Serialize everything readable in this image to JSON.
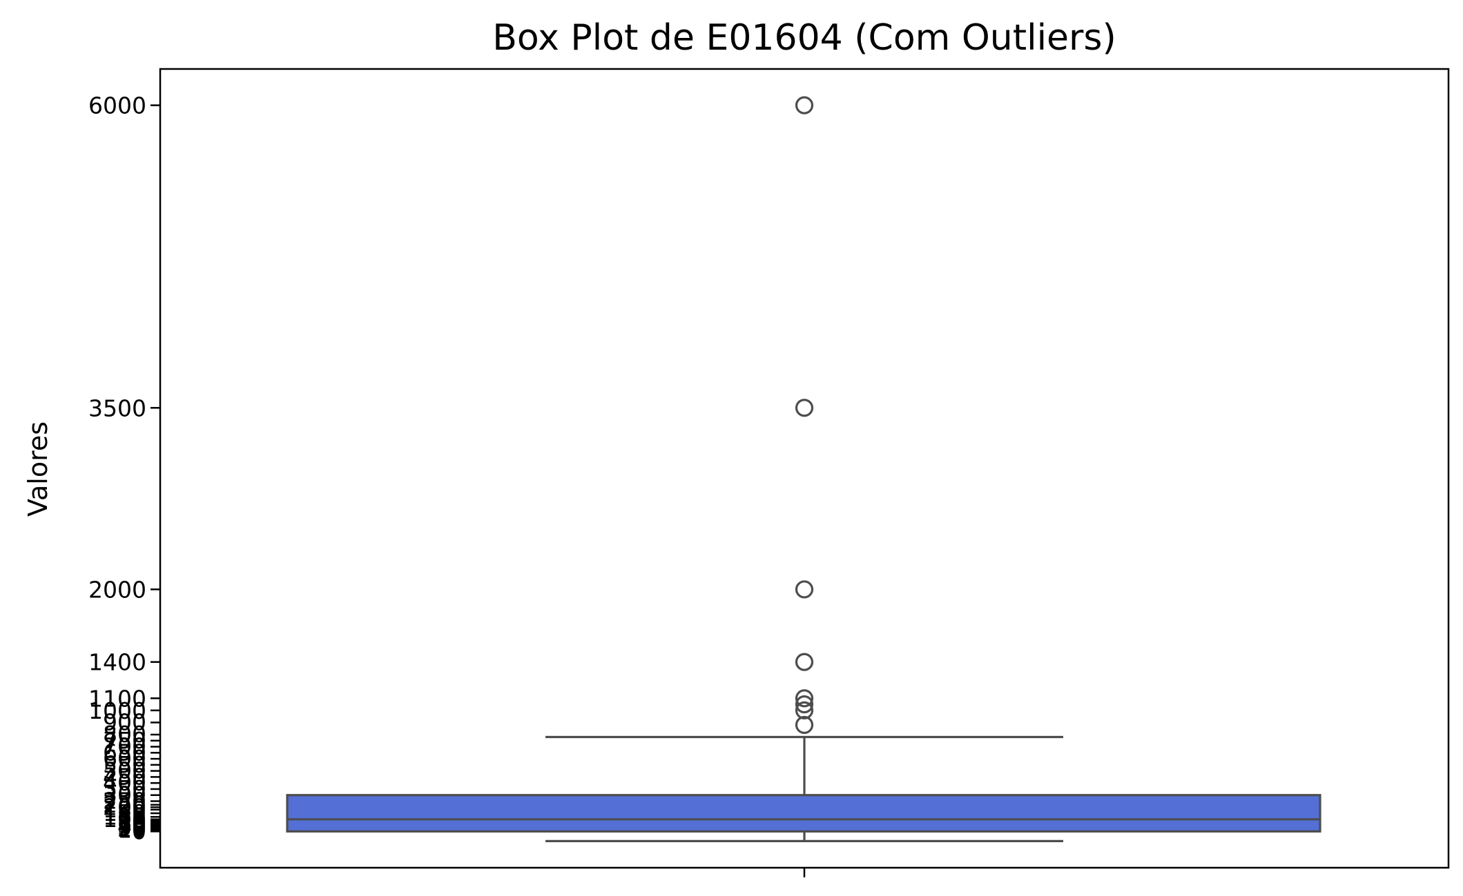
{
  "chart_data": {
    "type": "box",
    "title": "Box Plot de E01604 (Com Outliers)",
    "ylabel": "Valores",
    "xlabel": "",
    "ylim": [
      -300,
      6300
    ],
    "grid": false,
    "legend": "none",
    "box_color": "#5470D6",
    "line_color": "#4D4D4D",
    "box": {
      "whisker_low": 0,
      "q1": 0,
      "median": 100,
      "q3": 300,
      "whisker_high": 780
    },
    "outliers": [
      880,
      1000,
      1050,
      1100,
      1400,
      2000,
      3500,
      6000
    ],
    "labeled_yticks": [
      {
        "value": 6000,
        "label": "6000"
      },
      {
        "value": 3500,
        "label": "3500"
      },
      {
        "value": 2000,
        "label": "2000"
      },
      {
        "value": 1400,
        "label": "1400"
      },
      {
        "value": 1100,
        "label": "1100"
      },
      {
        "value": 1000,
        "label": "1000"
      }
    ],
    "minor_ytick_values": [
      0,
      10,
      20,
      30,
      40,
      50,
      60,
      70,
      80,
      90,
      100,
      120,
      150,
      180,
      200,
      220,
      250,
      300,
      350,
      400,
      450,
      500,
      550,
      600,
      650,
      700,
      750,
      800,
      900
    ]
  }
}
